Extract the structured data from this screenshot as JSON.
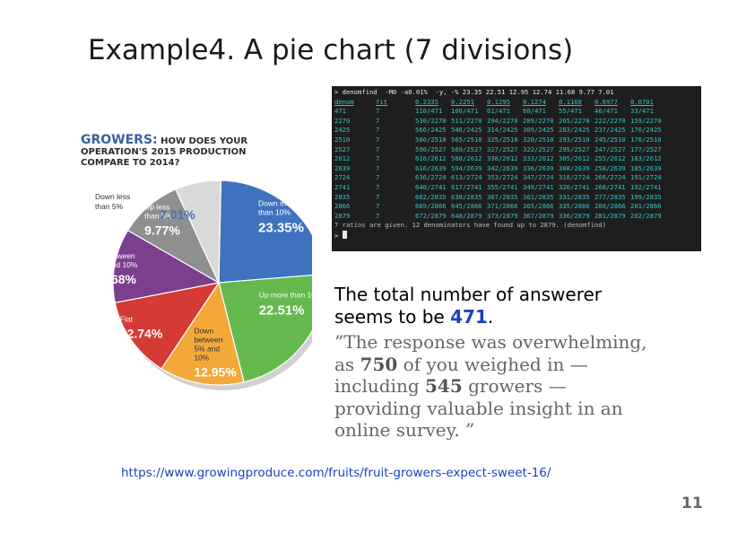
{
  "slide": {
    "title": "Example4.  A pie chart (7 divisions)",
    "page_number": "11",
    "source_url": "https://www.growingproduce.com/fruits/fruit-growers-expect-sweet-16/"
  },
  "chart_data": {
    "type": "pie",
    "title_accent": "GROWERS:",
    "title_line1": "HOW DOES YOUR",
    "title_line2": "OPERATION'S 2015 PRODUCTION",
    "title_line3": "COMPARE TO 2014?",
    "slices": [
      {
        "label": [
          "Down more",
          "than 10%"
        ],
        "value": 23.35,
        "display": "23.35%",
        "color": "#3f73bf"
      },
      {
        "label": [
          "Up more than 10%"
        ],
        "value": 22.51,
        "display": "22.51%",
        "color": "#66b94e"
      },
      {
        "label": [
          "Down",
          "between",
          "5% and",
          "10%"
        ],
        "value": 12.95,
        "display": "12.95%",
        "color": "#f3a83a"
      },
      {
        "label": [
          "Flat"
        ],
        "value": 12.74,
        "display": "12.74%",
        "color": "#d53a35"
      },
      {
        "label": [
          "Up between",
          "5% and 10%"
        ],
        "value": 11.68,
        "display": "11.68%",
        "color": "#7b3f8e"
      },
      {
        "label": [
          "Up less",
          "than 5%"
        ],
        "value": 9.77,
        "display": "9.77%",
        "color": "#8f8f8f"
      },
      {
        "label": [
          "Down less",
          "than 5%"
        ],
        "value": 7.01,
        "display": "7.01%",
        "color": "#d9d9d9"
      }
    ]
  },
  "terminal": {
    "command": "> denomfind  -M0 -a0.01%  -y, -% 23.35 22.51 12.95 12.74 11.68 9.77 7.01",
    "headers": [
      "denom",
      "fit",
      "0.2335",
      "0.2251",
      "0.1295",
      "0.1274",
      "0.1168",
      "0.0977",
      "0.0701"
    ],
    "rows": [
      [
        "471",
        "7",
        "110/471",
        "106/471",
        "61/471",
        "60/471",
        "55/471",
        "46/471",
        "33/471"
      ],
      [
        "2270",
        "7",
        "530/2270",
        "511/2270",
        "294/2270",
        "289/2270",
        "265/2270",
        "222/2270",
        "159/2270"
      ],
      [
        "2425",
        "7",
        "566/2425",
        "546/2425",
        "314/2425",
        "309/2425",
        "283/2425",
        "237/2425",
        "170/2425"
      ],
      [
        "2510",
        "7",
        "586/2510",
        "565/2510",
        "325/2510",
        "320/2510",
        "293/2510",
        "245/2510",
        "176/2510"
      ],
      [
        "2527",
        "7",
        "590/2527",
        "569/2527",
        "327/2527",
        "322/2527",
        "295/2527",
        "247/2527",
        "177/2527"
      ],
      [
        "2612",
        "7",
        "610/2612",
        "588/2612",
        "338/2612",
        "333/2612",
        "305/2612",
        "255/2612",
        "183/2612"
      ],
      [
        "2639",
        "7",
        "616/2639",
        "594/2639",
        "342/2639",
        "336/2639",
        "308/2639",
        "258/2639",
        "185/2639"
      ],
      [
        "2724",
        "7",
        "636/2724",
        "613/2724",
        "353/2724",
        "347/2724",
        "318/2724",
        "266/2724",
        "191/2724"
      ],
      [
        "2741",
        "7",
        "640/2741",
        "617/2741",
        "355/2741",
        "349/2741",
        "320/2741",
        "268/2741",
        "192/2741"
      ],
      [
        "2835",
        "7",
        "662/2835",
        "638/2835",
        "367/2835",
        "361/2835",
        "331/2835",
        "277/2835",
        "199/2835"
      ],
      [
        "2866",
        "7",
        "669/2866",
        "645/2866",
        "371/2866",
        "365/2866",
        "335/2866",
        "280/2866",
        "201/2866"
      ],
      [
        "2879",
        "7",
        "672/2879",
        "648/2879",
        "373/2879",
        "367/2879",
        "336/2879",
        "281/2879",
        "202/2879"
      ]
    ],
    "summary": "7 ratios are given. 12 denominators have found up to 2879. (denomfind)",
    "prompt": ">"
  },
  "note": {
    "line1": "The total number of answerer",
    "line2_pre": "seems to be ",
    "line2_num": "471",
    "line2_post": "."
  },
  "quote": {
    "p1": "”The response was overwhelming,",
    "p2_pre": "as ",
    "p2_num": "750",
    "p2_post": " of you weighed in —",
    "p3_pre": "including ",
    "p3_num": "545",
    "p3_post": " growers —",
    "p4": "providing valuable insight in an",
    "p5": "online survey. ”"
  }
}
